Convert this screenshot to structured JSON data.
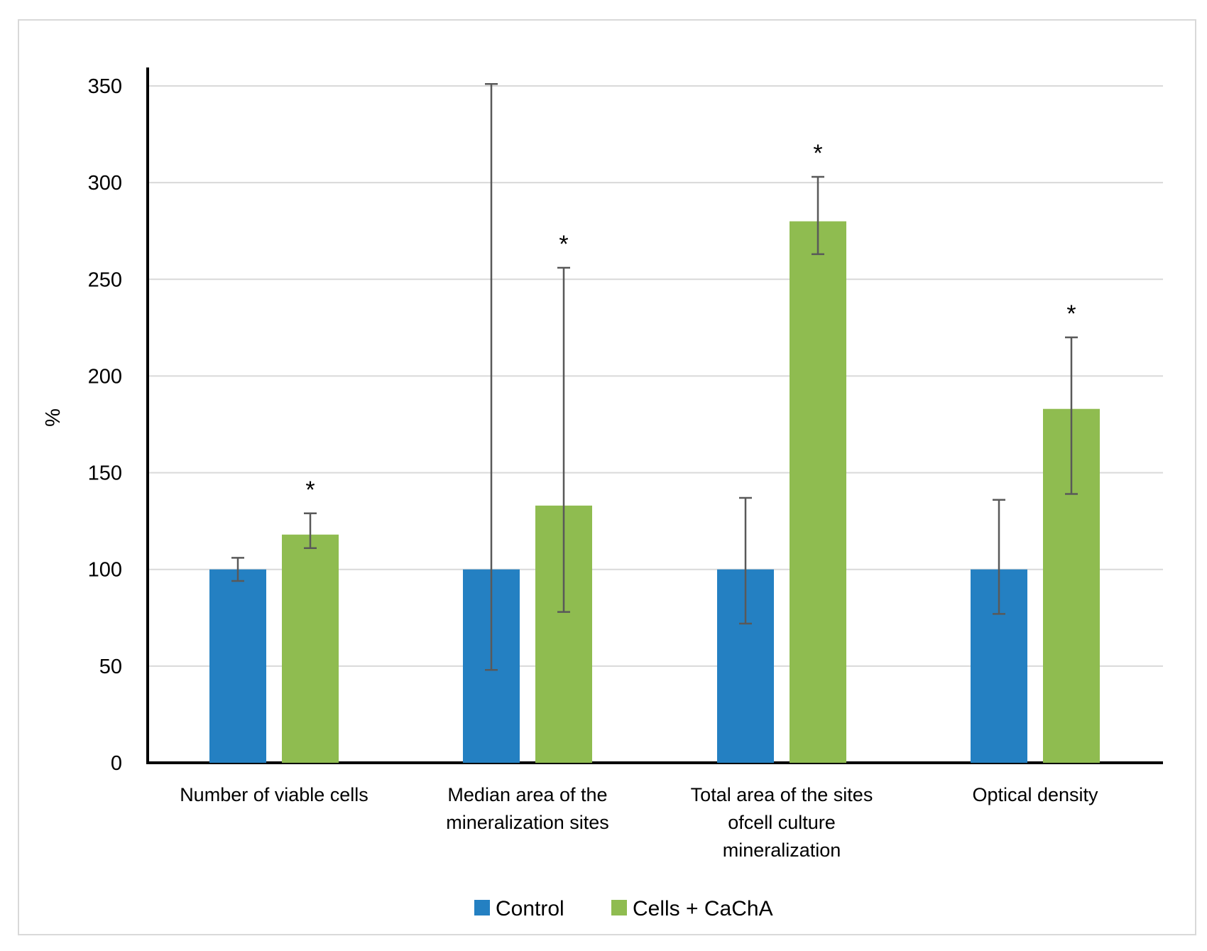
{
  "chart_data": {
    "type": "bar",
    "title": "",
    "xlabel": "",
    "ylabel": "%",
    "ylim": [
      0,
      350
    ],
    "yticks": [
      "0",
      "50",
      "100",
      "150",
      "200",
      "250",
      "300",
      "350"
    ],
    "grid": true,
    "legend_position": "bottom-center",
    "categories": [
      [
        "Number of viable cells"
      ],
      [
        "Median area of the",
        "mineralization sites"
      ],
      [
        "Total area of the sites",
        "ofcell culture",
        "mineralization"
      ],
      [
        "Optical density"
      ]
    ],
    "series": [
      {
        "name": "Control",
        "color": "#2480c2",
        "values": [
          100,
          100,
          100,
          100
        ],
        "err_low": [
          94,
          48,
          72,
          77
        ],
        "err_high": [
          106,
          351,
          137,
          136
        ]
      },
      {
        "name": "Cells + CaChA",
        "color": "#8fbc50",
        "values": [
          118,
          133,
          280,
          183
        ],
        "err_low": [
          111,
          78,
          263,
          139
        ],
        "err_high": [
          129,
          256,
          303,
          220
        ]
      }
    ],
    "significance": [
      "*",
      "*",
      "*",
      "*"
    ],
    "significance_flags": [
      false,
      true,
      false,
      true,
      false,
      true,
      false,
      true
    ]
  }
}
